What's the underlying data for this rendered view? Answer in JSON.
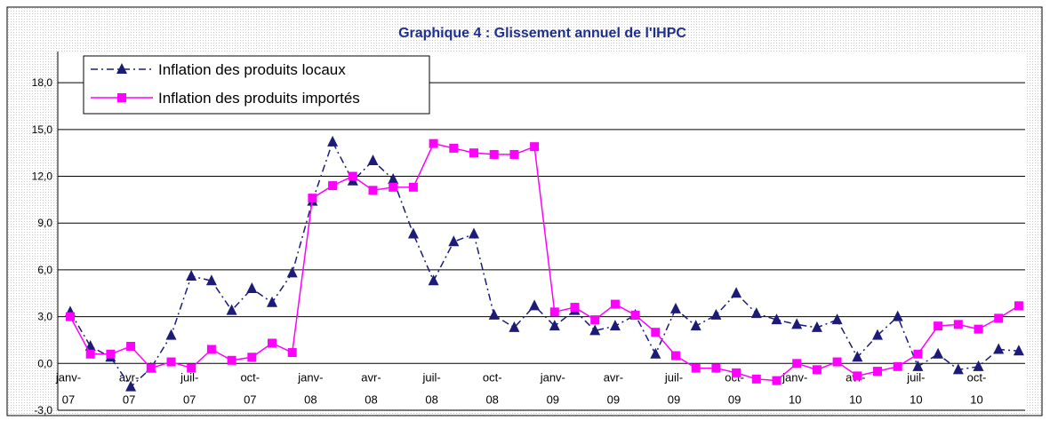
{
  "chart_data": {
    "type": "line",
    "title": "Graphique 4 : Glissement annuel de l'IHPC",
    "categories": [
      "janv-07",
      null,
      null,
      "avr-07",
      null,
      null,
      "juil-07",
      null,
      null,
      "oct-07",
      null,
      null,
      "janv-08",
      null,
      null,
      "avr-08",
      null,
      null,
      "juil-08",
      null,
      null,
      "oct-08",
      null,
      null,
      "janv-09",
      null,
      null,
      "avr-09",
      null,
      null,
      "juil-09",
      null,
      null,
      "oct-09",
      null,
      null,
      "janv-10",
      null,
      null,
      "avr-10",
      null,
      null,
      "juil-10",
      null,
      null,
      "oct-10",
      null,
      null
    ],
    "series": [
      {
        "name": "Inflation des produits locaux",
        "color": "#1c1c78",
        "marker": "triangle",
        "dash": "dash-dot",
        "values": [
          3.3,
          1.1,
          0.4,
          -1.5,
          -0.3,
          1.8,
          5.6,
          5.3,
          3.4,
          4.8,
          3.9,
          5.8,
          10.4,
          14.2,
          11.7,
          13.0,
          11.8,
          8.3,
          5.3,
          7.8,
          8.3,
          3.1,
          2.3,
          3.7,
          2.4,
          3.4,
          2.1,
          2.4,
          3.1,
          0.6,
          3.5,
          2.4,
          3.1,
          4.5,
          3.2,
          2.8,
          2.5,
          2.3,
          2.8,
          0.4,
          1.8,
          3.0,
          -0.2,
          0.6,
          -0.4,
          -0.2,
          0.9,
          0.8
        ]
      },
      {
        "name": "Inflation des produits importés",
        "color": "#ff00ff",
        "marker": "square",
        "dash": "solid",
        "values": [
          3.0,
          0.6,
          0.6,
          1.1,
          -0.3,
          0.1,
          -0.3,
          0.9,
          0.2,
          0.4,
          1.3,
          0.7,
          10.6,
          11.4,
          12.0,
          11.1,
          11.3,
          11.3,
          14.1,
          13.8,
          13.5,
          13.4,
          13.4,
          13.9,
          3.3,
          3.6,
          2.8,
          3.8,
          3.1,
          2.0,
          0.5,
          -0.3,
          -0.3,
          -0.6,
          -1.0,
          -1.1,
          0.0,
          -0.4,
          0.1,
          -0.8,
          -0.5,
          -0.2,
          0.6,
          2.4,
          2.5,
          2.2,
          2.9,
          3.7
        ]
      }
    ],
    "ylim": [
      -3,
      20
    ],
    "yticks": [
      {
        "value": -3,
        "label": "-3,0"
      },
      {
        "value": 0,
        "label": "0,0"
      },
      {
        "value": 3,
        "label": "3,0"
      },
      {
        "value": 6,
        "label": "6,0"
      },
      {
        "value": 9,
        "label": "9,0"
      },
      {
        "value": 12,
        "label": "12,0"
      },
      {
        "value": 15,
        "label": "15,0"
      },
      {
        "value": 18,
        "label": "18,0"
      }
    ],
    "grid": true,
    "legend": "upper left"
  }
}
